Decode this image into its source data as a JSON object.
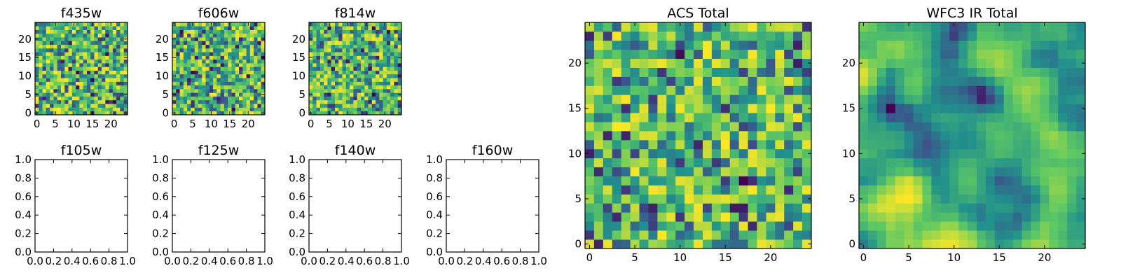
{
  "chart_data": [
    {
      "type": "heatmap",
      "title": "f435w",
      "xlabel": "",
      "ylabel": "",
      "xlim": [
        -0.5,
        24.5
      ],
      "ylim": [
        -0.5,
        24.5
      ],
      "xticks": [
        "0",
        "5",
        "10",
        "15",
        "20"
      ],
      "yticks": [
        "0",
        "5",
        "10",
        "15",
        "20"
      ],
      "grid_size": [
        25,
        25
      ],
      "colormap": [
        "#440154",
        "#3b528b",
        "#21918c",
        "#5ec962",
        "#fde725"
      ],
      "pattern_seed": 11,
      "pattern_smooth": 0
    },
    {
      "type": "heatmap",
      "title": "f606w",
      "xlabel": "",
      "ylabel": "",
      "xlim": [
        -0.5,
        24.5
      ],
      "ylim": [
        -0.5,
        24.5
      ],
      "xticks": [
        "0",
        "5",
        "10",
        "15",
        "20"
      ],
      "yticks": [
        "0",
        "5",
        "10",
        "15",
        "20"
      ],
      "grid_size": [
        25,
        25
      ],
      "colormap": [
        "#440154",
        "#3b528b",
        "#21918c",
        "#5ec962",
        "#fde725"
      ],
      "pattern_seed": 23,
      "pattern_smooth": 0
    },
    {
      "type": "heatmap",
      "title": "f814w",
      "xlabel": "",
      "ylabel": "",
      "xlim": [
        -0.5,
        24.5
      ],
      "ylim": [
        -0.5,
        24.5
      ],
      "xticks": [
        "0",
        "5",
        "10",
        "15",
        "20"
      ],
      "yticks": [
        "0",
        "5",
        "10",
        "15",
        "20"
      ],
      "grid_size": [
        25,
        25
      ],
      "colormap": [
        "#440154",
        "#3b528b",
        "#21918c",
        "#5ec962",
        "#fde725"
      ],
      "pattern_seed": 37,
      "pattern_smooth": 0
    },
    {
      "type": "line",
      "title": "f105w",
      "xlabel": "",
      "ylabel": "",
      "xlim": [
        0,
        1
      ],
      "ylim": [
        0,
        1
      ],
      "xticks": [
        "0.0",
        "0.2",
        "0.4",
        "0.6",
        "0.8",
        "1.0"
      ],
      "yticks": [
        "0.0",
        "0.2",
        "0.4",
        "0.6",
        "0.8",
        "1.0"
      ],
      "series": []
    },
    {
      "type": "line",
      "title": "f125w",
      "xlabel": "",
      "ylabel": "",
      "xlim": [
        0,
        1
      ],
      "ylim": [
        0,
        1
      ],
      "xticks": [
        "0.0",
        "0.2",
        "0.4",
        "0.6",
        "0.8",
        "1.0"
      ],
      "yticks": [
        "0.0",
        "0.2",
        "0.4",
        "0.6",
        "0.8",
        "1.0"
      ],
      "series": []
    },
    {
      "type": "line",
      "title": "f140w",
      "xlabel": "",
      "ylabel": "",
      "xlim": [
        0,
        1
      ],
      "ylim": [
        0,
        1
      ],
      "xticks": [
        "0.0",
        "0.2",
        "0.4",
        "0.6",
        "0.8",
        "1.0"
      ],
      "yticks": [
        "0.0",
        "0.2",
        "0.4",
        "0.6",
        "0.8",
        "1.0"
      ],
      "series": []
    },
    {
      "type": "line",
      "title": "f160w",
      "xlabel": "",
      "ylabel": "",
      "xlim": [
        0,
        1
      ],
      "ylim": [
        0,
        1
      ],
      "xticks": [
        "0.0",
        "0.2",
        "0.4",
        "0.6",
        "0.8",
        "1.0"
      ],
      "yticks": [
        "0.0",
        "0.2",
        "0.4",
        "0.6",
        "0.8",
        "1.0"
      ],
      "series": []
    },
    {
      "type": "heatmap",
      "title": "ACS Total",
      "xlabel": "",
      "ylabel": "",
      "xlim": [
        -0.5,
        24.5
      ],
      "ylim": [
        -0.5,
        24.5
      ],
      "xticks": [
        "0",
        "5",
        "10",
        "15",
        "20"
      ],
      "yticks": [
        "0",
        "5",
        "10",
        "15",
        "20"
      ],
      "grid_size": [
        25,
        25
      ],
      "colormap": [
        "#440154",
        "#3b528b",
        "#21918c",
        "#5ec962",
        "#fde725"
      ],
      "pattern_seed": 51,
      "pattern_smooth": 0
    },
    {
      "type": "heatmap",
      "title": "WFC3 IR Total",
      "xlabel": "",
      "ylabel": "",
      "xlim": [
        -0.5,
        24.5
      ],
      "ylim": [
        -0.5,
        24.5
      ],
      "xticks": [
        "0",
        "5",
        "10",
        "15",
        "20"
      ],
      "yticks": [
        "0",
        "5",
        "10",
        "15",
        "20"
      ],
      "grid_size": [
        25,
        25
      ],
      "colormap": [
        "#440154",
        "#3b528b",
        "#21918c",
        "#5ec962",
        "#fde725"
      ],
      "pattern_seed": 73,
      "pattern_smooth": 2
    }
  ]
}
